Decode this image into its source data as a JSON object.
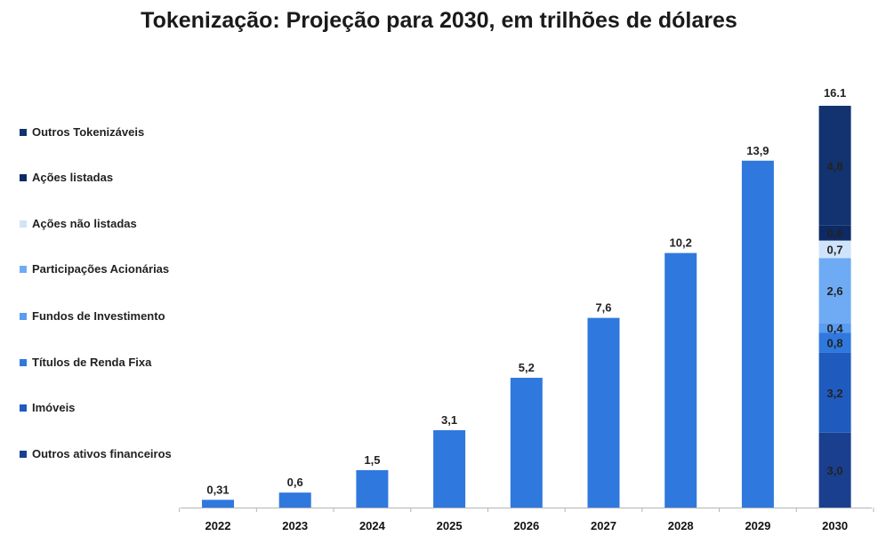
{
  "chart_data": {
    "type": "bar",
    "title": "Tokenização: Projeção para 2030, em trilhões de dólares",
    "categories": [
      "2022",
      "2023",
      "2024",
      "2025",
      "2026",
      "2027",
      "2028",
      "2029",
      "2030"
    ],
    "values": [
      0.31,
      0.6,
      1.5,
      3.1,
      5.2,
      7.6,
      10.2,
      13.9,
      16.1
    ],
    "value_labels": [
      "0,31",
      "0,6",
      "1,5",
      "3,1",
      "5,2",
      "7,6",
      "10,2",
      "13,9",
      "16.1"
    ],
    "bar_color": "#2f78de",
    "stacked_2030": {
      "category": "2030",
      "total_label": "16.1",
      "segments": [
        {
          "name": "Outros ativos financeiros",
          "value": 3.0,
          "label": "3,0",
          "color": "#1a3f8f"
        },
        {
          "name": "Imóveis",
          "value": 3.2,
          "label": "3,2",
          "color": "#1f5bbf"
        },
        {
          "name": "Títulos de Renda Fixa",
          "value": 0.8,
          "label": "0,8",
          "color": "#2f78de"
        },
        {
          "name": "Fundos de Investimento",
          "value": 0.4,
          "label": "0,4",
          "color": "#5a9cf0"
        },
        {
          "name": "Participações Acionárias",
          "value": 2.6,
          "label": "2,6",
          "color": "#6fabf5"
        },
        {
          "name": "Ações não listadas",
          "value": 0.7,
          "label": "0,7",
          "color": "#cfe3fa"
        },
        {
          "name": "Ações listadas",
          "value": 0.6,
          "label": "0,6",
          "color": "#0d2a66"
        },
        {
          "name": "Outros Tokenizáveis",
          "value": 4.8,
          "label": "4,8",
          "color": "#12336f"
        }
      ]
    },
    "legend": [
      {
        "label": "Outros Tokenizáveis",
        "color": "#12336f"
      },
      {
        "label": "Ações listadas",
        "color": "#0d2a66"
      },
      {
        "label": "Ações não listadas",
        "color": "#cfe3fa"
      },
      {
        "label": "Participações Acionárias",
        "color": "#6fabf5"
      },
      {
        "label": "Fundos de Investimento",
        "color": "#5a9cf0"
      },
      {
        "label": "Títulos de Renda Fixa",
        "color": "#2f78de"
      },
      {
        "label": "Imóveis",
        "color": "#1f5bbf"
      },
      {
        "label": "Outros ativos financeiros",
        "color": "#1a3f8f"
      }
    ],
    "legend_placement": "left",
    "ylim": [
      0,
      16.1
    ],
    "grid": false
  }
}
